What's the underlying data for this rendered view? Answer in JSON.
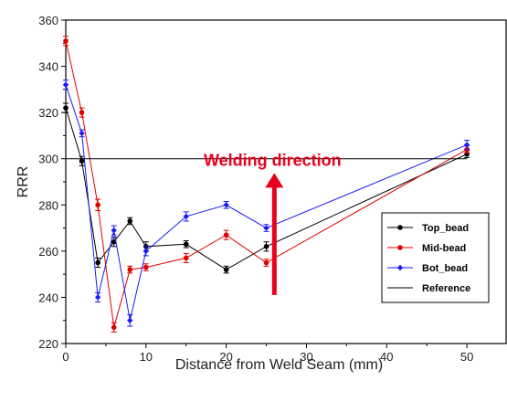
{
  "chart_data": {
    "type": "line",
    "title": "",
    "xlabel": "Distance from Weld Seam (mm)",
    "ylabel": "RRR",
    "xlim": [
      0,
      55
    ],
    "ylim": [
      220,
      360
    ],
    "x_ticks": [
      0,
      10,
      20,
      30,
      40,
      50
    ],
    "y_ticks": [
      220,
      240,
      260,
      280,
      300,
      320,
      340,
      360
    ],
    "grid": false,
    "legend_position": "lower-right",
    "series": [
      {
        "name": "Top_bead",
        "color": "#000000",
        "marker": "circle",
        "error_bars": true,
        "x": [
          0,
          2,
          4,
          6,
          8,
          10,
          15,
          20,
          25,
          50
        ],
        "y": [
          322,
          299,
          255,
          264,
          273,
          262,
          263,
          252,
          262,
          302
        ],
        "error": [
          2,
          2,
          2,
          2,
          1.5,
          2,
          1.5,
          1.5,
          2,
          1.5
        ]
      },
      {
        "name": "Mid-bead",
        "color": "#e00000",
        "marker": "circle",
        "error_bars": true,
        "x": [
          0,
          2,
          4,
          6,
          8,
          10,
          15,
          20,
          25,
          50
        ],
        "y": [
          351,
          320,
          280,
          227,
          252,
          253,
          257,
          267,
          255,
          304
        ],
        "error": [
          2,
          2,
          2.5,
          2,
          1.5,
          1.5,
          2,
          2,
          1.5,
          1.5
        ]
      },
      {
        "name": "Bot_bead",
        "color": "#1a1aff",
        "marker": "diamond",
        "error_bars": true,
        "x": [
          0,
          2,
          4,
          6,
          8,
          10,
          15,
          20,
          25,
          50
        ],
        "y": [
          332,
          311,
          240,
          269,
          230,
          260,
          275,
          280,
          270,
          306
        ],
        "error": [
          2,
          1.5,
          2,
          2,
          2.5,
          2,
          2,
          1.5,
          1.5,
          2
        ]
      },
      {
        "name": "Reference",
        "color": "#000000",
        "marker": "none",
        "error_bars": false,
        "x": [
          0,
          50
        ],
        "y": [
          300,
          300
        ]
      }
    ],
    "annotations": [
      {
        "text": "Welding direction",
        "color": "#e8001c",
        "arrow": {
          "x": 26,
          "y_from": 241,
          "y_to": 293,
          "direction": "up"
        }
      }
    ]
  }
}
